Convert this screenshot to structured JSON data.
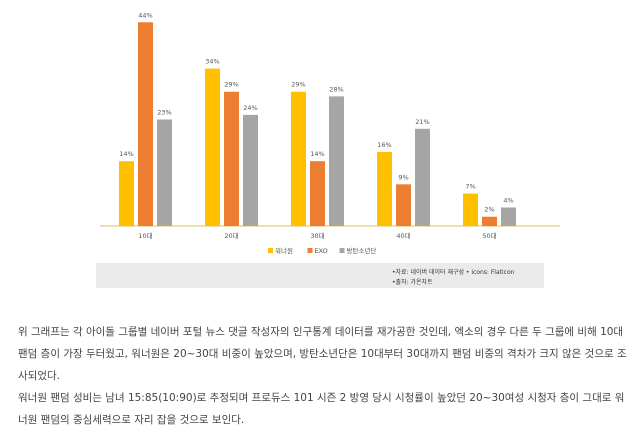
{
  "chart_data": {
    "type": "bar",
    "categories": [
      "10대",
      "20대",
      "30대",
      "40대",
      "50대"
    ],
    "series": [
      {
        "name": "워너원",
        "color": "#FFC000",
        "values": [
          14,
          34,
          29,
          16,
          7
        ]
      },
      {
        "name": "EXO",
        "color": "#ED7D31",
        "values": [
          44,
          29,
          14,
          9,
          2
        ]
      },
      {
        "name": "방탄소년단",
        "color": "#A5A5A5",
        "values": [
          23,
          24,
          28,
          21,
          4
        ]
      }
    ],
    "value_suffix": "%",
    "ylim": [
      0,
      45
    ],
    "legend_position": "bottom",
    "grid": false
  },
  "source": {
    "line1": "•자료: 네이버 데이터 재구성 • icons: Flaticon",
    "line2": "•출처: 가온차트"
  },
  "article": {
    "paragraph1": "위 그래프는 각 아이돌 그룹별 네이버 포털 뉴스 댓글 작성자의 인구통계 데이터를 재가공한 것인데, 엑소의 경우 다른 두 그룹에 비해 10대 팬덤 층이 가장 두터웠고, 워너원은 20~30대 비중이 높았으며, 방탄소년단은 10대부터 30대까지 팬덤 비중의 격차가 크지 않은 것으로 조사되었다.",
    "paragraph2": "워너원 팬덤 성비는 남녀 15:85(10:90)로 추정되며 프로듀스 101 시즌 2 방영 당시 시청률이 높았던 20~30여성 시청자 층이 그대로 워너원 팬덤의 중심세력으로 자리 잡을 것으로 보인다."
  }
}
